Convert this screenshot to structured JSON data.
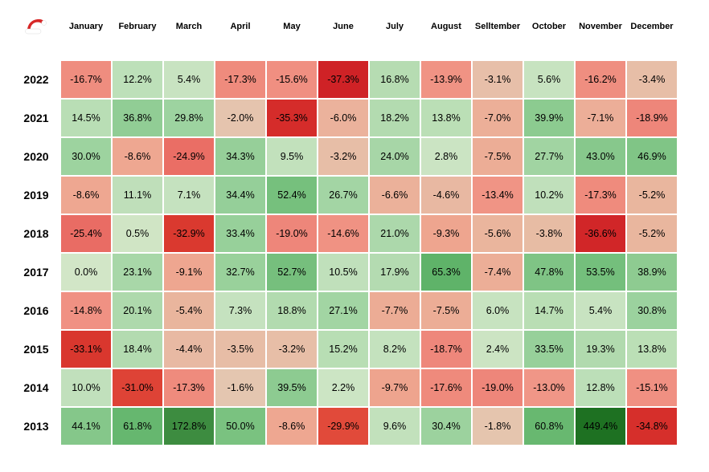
{
  "heatmap": {
    "type": "heatmap",
    "background_color": "#ffffff",
    "cell_border_color": "#ffffff",
    "header_font_size": 11,
    "header_font_weight": "bold",
    "row_header_font_size": 14,
    "row_header_font_weight": "bold",
    "cell_font_size": 12.5,
    "columns": [
      "January",
      "February",
      "March",
      "April",
      "May",
      "June",
      "July",
      "August",
      "Selltember",
      "October",
      "November",
      "December"
    ],
    "rows": [
      "2022",
      "2021",
      "2020",
      "2019",
      "2018",
      "2017",
      "2016",
      "2015",
      "2014",
      "2013"
    ],
    "cells": [
      [
        {
          "v": "-16.7%",
          "c": "#ef8d7f"
        },
        {
          "v": "12.2%",
          "c": "#bde0b9"
        },
        {
          "v": "5.4%",
          "c": "#c8e3c1"
        },
        {
          "v": "-17.3%",
          "c": "#ef8b7d"
        },
        {
          "v": "-15.6%",
          "c": "#f08f81"
        },
        {
          "v": "-37.3%",
          "c": "#cf2226"
        },
        {
          "v": "16.8%",
          "c": "#b6dcb2"
        },
        {
          "v": "-13.9%",
          "c": "#f09384"
        },
        {
          "v": "-3.1%",
          "c": "#e7bfa9"
        },
        {
          "v": "5.6%",
          "c": "#c7e3c0"
        },
        {
          "v": "-16.2%",
          "c": "#ef8e80"
        },
        {
          "v": "-3.4%",
          "c": "#e7bea7"
        }
      ],
      [
        {
          "v": "14.5%",
          "c": "#b9deb5"
        },
        {
          "v": "36.8%",
          "c": "#91cd95"
        },
        {
          "v": "29.8%",
          "c": "#9dd3a0"
        },
        {
          "v": "-2.0%",
          "c": "#e5c4ae"
        },
        {
          "v": "-35.3%",
          "c": "#d52c2a"
        },
        {
          "v": "-6.0%",
          "c": "#ebb29c"
        },
        {
          "v": "18.2%",
          "c": "#b3dbb0"
        },
        {
          "v": "13.8%",
          "c": "#bbdfb6"
        },
        {
          "v": "-7.0%",
          "c": "#ecaf98"
        },
        {
          "v": "39.9%",
          "c": "#8ccb90"
        },
        {
          "v": "-7.1%",
          "c": "#ecae98"
        },
        {
          "v": "-18.9%",
          "c": "#ee867a"
        }
      ],
      [
        {
          "v": "30.0%",
          "c": "#9dd39f"
        },
        {
          "v": "-8.6%",
          "c": "#eea791"
        },
        {
          "v": "-24.9%",
          "c": "#ea6e65"
        },
        {
          "v": "34.3%",
          "c": "#96cf99"
        },
        {
          "v": "9.5%",
          "c": "#c2e1bc"
        },
        {
          "v": "-3.2%",
          "c": "#e7bea7"
        },
        {
          "v": "24.0%",
          "c": "#a7d6a7"
        },
        {
          "v": "2.8%",
          "c": "#cbe4c3"
        },
        {
          "v": "-7.5%",
          "c": "#ecad96"
        },
        {
          "v": "27.7%",
          "c": "#a1d4a2"
        },
        {
          "v": "43.0%",
          "c": "#87c88c"
        },
        {
          "v": "46.9%",
          "c": "#80c586"
        }
      ],
      [
        {
          "v": "-8.6%",
          "c": "#eea791"
        },
        {
          "v": "11.1%",
          "c": "#bfdfba"
        },
        {
          "v": "7.1%",
          "c": "#c5e2bf"
        },
        {
          "v": "34.4%",
          "c": "#95cf99"
        },
        {
          "v": "52.4%",
          "c": "#76c07d"
        },
        {
          "v": "26.7%",
          "c": "#a3d5a4"
        },
        {
          "v": "-6.6%",
          "c": "#ebb19a"
        },
        {
          "v": "-4.6%",
          "c": "#e8b8a2"
        },
        {
          "v": "-13.4%",
          "c": "#f09485"
        },
        {
          "v": "10.2%",
          "c": "#c0e0bb"
        },
        {
          "v": "-17.3%",
          "c": "#ef8b7d"
        },
        {
          "v": "-5.2%",
          "c": "#e9b69e"
        }
      ],
      [
        {
          "v": "-25.4%",
          "c": "#e96c64"
        },
        {
          "v": "0.5%",
          "c": "#d0e5c5"
        },
        {
          "v": "-32.9%",
          "c": "#da392f"
        },
        {
          "v": "33.4%",
          "c": "#97d09a"
        },
        {
          "v": "-19.0%",
          "c": "#ee867a"
        },
        {
          "v": "-14.6%",
          "c": "#f09283"
        },
        {
          "v": "21.0%",
          "c": "#acd8ab"
        },
        {
          "v": "-9.3%",
          "c": "#eea58f"
        },
        {
          "v": "-5.6%",
          "c": "#eab59d"
        },
        {
          "v": "-3.8%",
          "c": "#e7bca4"
        },
        {
          "v": "-36.6%",
          "c": "#d12628"
        },
        {
          "v": "-5.2%",
          "c": "#e9b69e"
        }
      ],
      [
        {
          "v": "0.0%",
          "c": "#d2e6c7"
        },
        {
          "v": "23.1%",
          "c": "#a8d7a8"
        },
        {
          "v": "-9.1%",
          "c": "#eea690"
        },
        {
          "v": "32.7%",
          "c": "#99d19b"
        },
        {
          "v": "52.7%",
          "c": "#76bf7d"
        },
        {
          "v": "10.5%",
          "c": "#c0e0bb"
        },
        {
          "v": "17.9%",
          "c": "#b4dbb1"
        },
        {
          "v": "65.3%",
          "c": "#5fb369"
        },
        {
          "v": "-7.4%",
          "c": "#ecae97"
        },
        {
          "v": "47.8%",
          "c": "#7fc485"
        },
        {
          "v": "53.5%",
          "c": "#74bf7c"
        },
        {
          "v": "38.9%",
          "c": "#8ecb91"
        }
      ],
      [
        {
          "v": "-14.8%",
          "c": "#f09183"
        },
        {
          "v": "20.1%",
          "c": "#aed9ac"
        },
        {
          "v": "-5.4%",
          "c": "#e9b59d"
        },
        {
          "v": "7.3%",
          "c": "#c5e2bf"
        },
        {
          "v": "18.8%",
          "c": "#b2dbaf"
        },
        {
          "v": "27.1%",
          "c": "#a2d5a3"
        },
        {
          "v": "-7.7%",
          "c": "#ecac95"
        },
        {
          "v": "-7.5%",
          "c": "#ecad96"
        },
        {
          "v": "6.0%",
          "c": "#c7e3c0"
        },
        {
          "v": "14.7%",
          "c": "#b9deb4"
        },
        {
          "v": "5.4%",
          "c": "#c8e3c1"
        },
        {
          "v": "30.8%",
          "c": "#9bd29e"
        }
      ],
      [
        {
          "v": "-33.1%",
          "c": "#d9372e"
        },
        {
          "v": "18.4%",
          "c": "#b3dbb0"
        },
        {
          "v": "-4.4%",
          "c": "#e8b9a3"
        },
        {
          "v": "-3.5%",
          "c": "#e7bda6"
        },
        {
          "v": "-3.2%",
          "c": "#e7bea7"
        },
        {
          "v": "15.2%",
          "c": "#b8deb4"
        },
        {
          "v": "8.2%",
          "c": "#c4e2be"
        },
        {
          "v": "-18.7%",
          "c": "#ee877b"
        },
        {
          "v": "2.4%",
          "c": "#cce4c3"
        },
        {
          "v": "33.5%",
          "c": "#97d09a"
        },
        {
          "v": "19.3%",
          "c": "#b1daae"
        },
        {
          "v": "13.8%",
          "c": "#bbdfb6"
        }
      ],
      [
        {
          "v": "10.0%",
          "c": "#c1e0bc"
        },
        {
          "v": "-31.0%",
          "c": "#de4336"
        },
        {
          "v": "-17.3%",
          "c": "#ef8b7d"
        },
        {
          "v": "-1.6%",
          "c": "#e4c6b0"
        },
        {
          "v": "39.5%",
          "c": "#8dcb91"
        },
        {
          "v": "2.2%",
          "c": "#cce5c4"
        },
        {
          "v": "-9.7%",
          "c": "#eea48e"
        },
        {
          "v": "-17.6%",
          "c": "#ef8a7c"
        },
        {
          "v": "-19.0%",
          "c": "#ee867a"
        },
        {
          "v": "-13.0%",
          "c": "#f09687"
        },
        {
          "v": "12.8%",
          "c": "#bcdfb8"
        },
        {
          "v": "-15.1%",
          "c": "#f09082"
        }
      ],
      [
        {
          "v": "44.1%",
          "c": "#85c78a"
        },
        {
          "v": "61.8%",
          "c": "#66b76f"
        },
        {
          "v": "172.8%",
          "c": "#3d8c40"
        },
        {
          "v": "50.0%",
          "c": "#7ac280"
        },
        {
          "v": "-8.6%",
          "c": "#eea791"
        },
        {
          "v": "-29.9%",
          "c": "#e14a3a"
        },
        {
          "v": "9.6%",
          "c": "#c2e1bc"
        },
        {
          "v": "30.4%",
          "c": "#9cd29e"
        },
        {
          "v": "-1.8%",
          "c": "#e5c5ae"
        },
        {
          "v": "60.8%",
          "c": "#68b870"
        },
        {
          "v": "449.4%",
          "c": "#1e7122"
        },
        {
          "v": "-34.8%",
          "c": "#d62f2b"
        }
      ]
    ]
  }
}
